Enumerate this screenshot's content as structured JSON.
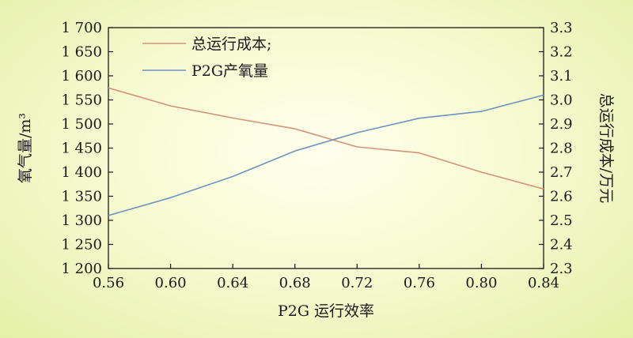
{
  "chart_data": {
    "type": "line",
    "x": [
      0.56,
      0.6,
      0.64,
      0.68,
      0.72,
      0.76,
      0.8,
      0.84
    ],
    "x_tick_labels": [
      "0.56",
      "0.60",
      "0.64",
      "0.68",
      "0.72",
      "0.76",
      "0.80",
      "0.84"
    ],
    "xlim": [
      0.56,
      0.84
    ],
    "xlabel": "P2G 运行效率",
    "left_axis": {
      "label": "氧气量/m³",
      "ylim": [
        1200,
        1700
      ],
      "ticks": [
        1200,
        1250,
        1300,
        1350,
        1400,
        1450,
        1500,
        1550,
        1600,
        1650,
        1700
      ],
      "tick_labels": [
        "1 200",
        "1 250",
        "1 300",
        "1 350",
        "1 400",
        "1 450",
        "1 500",
        "1 550",
        "1 600",
        "1 650",
        "1 700"
      ]
    },
    "right_axis": {
      "label": "总运行成本/万元",
      "ylim": [
        2.3,
        3.3
      ],
      "ticks": [
        2.3,
        2.4,
        2.5,
        2.6,
        2.7,
        2.8,
        2.9,
        3.0,
        3.1,
        3.2,
        3.3
      ],
      "tick_labels": [
        "2.3",
        "2.4",
        "2.5",
        "2.6",
        "2.7",
        "2.8",
        "2.9",
        "3.0",
        "3.1",
        "3.2",
        "3.3"
      ]
    },
    "series": [
      {
        "name": "总运行成本;",
        "axis": "right",
        "color": "#d4937a",
        "values": [
          3.05,
          2.975,
          2.925,
          2.88,
          2.805,
          2.78,
          2.7,
          2.63
        ]
      },
      {
        "name": "P2G产氧量",
        "axis": "left",
        "color": "#6d93c2",
        "values": [
          1310,
          1347,
          1391,
          1444,
          1482,
          1512,
          1526,
          1560
        ]
      }
    ],
    "legend_position": "top-left",
    "grid": false
  }
}
